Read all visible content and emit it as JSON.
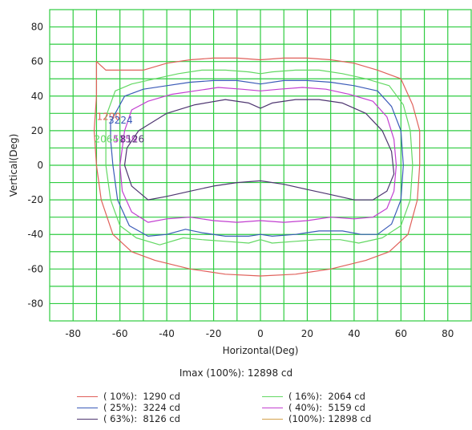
{
  "chart_data": {
    "type": "line",
    "title": "",
    "xlabel": "Horizontal(Deg)",
    "ylabel": "Vertical(Deg)",
    "xlim": [
      -90,
      90
    ],
    "ylim": [
      -90,
      90
    ],
    "x_ticks": [
      -80,
      -60,
      -40,
      -20,
      0,
      20,
      40,
      60,
      80
    ],
    "y_ticks": [
      80,
      60,
      40,
      20,
      0,
      -20,
      -40,
      -60,
      -80
    ],
    "grid": true,
    "grid_color": "#2ecc40",
    "legend_position": "bottom",
    "imax_text": "Imax (100%): 12898 cd",
    "series": [
      {
        "name": "( 10%):  1290 cd",
        "color": "#e0605a",
        "points": [
          [
            -70,
            60
          ],
          [
            -66,
            55
          ],
          [
            -60,
            55
          ],
          [
            -50,
            55
          ],
          [
            -40,
            59
          ],
          [
            -30,
            61
          ],
          [
            -20,
            62
          ],
          [
            -10,
            62
          ],
          [
            0,
            61
          ],
          [
            10,
            62
          ],
          [
            20,
            62
          ],
          [
            30,
            61
          ],
          [
            40,
            59
          ],
          [
            50,
            55
          ],
          [
            60,
            50
          ],
          [
            65,
            35
          ],
          [
            68,
            20
          ],
          [
            68,
            0
          ],
          [
            67,
            -20
          ],
          [
            63,
            -40
          ],
          [
            55,
            -50
          ],
          [
            45,
            -55
          ],
          [
            30,
            -60
          ],
          [
            15,
            -63
          ],
          [
            0,
            -64
          ],
          [
            -15,
            -63
          ],
          [
            -30,
            -60
          ],
          [
            -45,
            -55
          ],
          [
            -55,
            -50
          ],
          [
            -63,
            -40
          ],
          [
            -68,
            -20
          ],
          [
            -70,
            0
          ],
          [
            -71,
            20
          ],
          [
            -70,
            40
          ]
        ]
      },
      {
        "name": "( 16%):  2064 cd",
        "color": "#63d863",
        "points": [
          [
            -66,
            28
          ],
          [
            -62,
            43
          ],
          [
            -55,
            47
          ],
          [
            -45,
            50
          ],
          [
            -35,
            53
          ],
          [
            -25,
            55
          ],
          [
            -15,
            55
          ],
          [
            -5,
            54
          ],
          [
            0,
            53
          ],
          [
            5,
            54
          ],
          [
            15,
            55
          ],
          [
            25,
            55
          ],
          [
            35,
            53
          ],
          [
            45,
            50
          ],
          [
            55,
            46
          ],
          [
            61,
            35
          ],
          [
            64,
            20
          ],
          [
            65,
            0
          ],
          [
            64,
            -20
          ],
          [
            60,
            -35
          ],
          [
            52,
            -42
          ],
          [
            42,
            -45
          ],
          [
            34,
            -43
          ],
          [
            25,
            -43
          ],
          [
            15,
            -44
          ],
          [
            5,
            -45
          ],
          [
            0,
            -43
          ],
          [
            -5,
            -45
          ],
          [
            -15,
            -44
          ],
          [
            -25,
            -43
          ],
          [
            -33,
            -42
          ],
          [
            -43,
            -46
          ],
          [
            -53,
            -42
          ],
          [
            -60,
            -35
          ],
          [
            -64,
            -20
          ],
          [
            -66,
            0
          ],
          [
            -66,
            15
          ]
        ]
      },
      {
        "name": "( 25%):  3224 cd",
        "color": "#3b5bb8",
        "points": [
          [
            -64,
            25
          ],
          [
            -58,
            40
          ],
          [
            -50,
            44
          ],
          [
            -40,
            46
          ],
          [
            -30,
            48
          ],
          [
            -20,
            49
          ],
          [
            -10,
            49
          ],
          [
            0,
            47
          ],
          [
            10,
            49
          ],
          [
            20,
            49
          ],
          [
            30,
            48
          ],
          [
            40,
            46
          ],
          [
            50,
            43
          ],
          [
            56,
            34
          ],
          [
            60,
            20
          ],
          [
            61,
            0
          ],
          [
            60,
            -20
          ],
          [
            56,
            -34
          ],
          [
            50,
            -40
          ],
          [
            43,
            -40
          ],
          [
            35,
            -38
          ],
          [
            25,
            -38
          ],
          [
            15,
            -40
          ],
          [
            5,
            -41
          ],
          [
            0,
            -40
          ],
          [
            -5,
            -41
          ],
          [
            -15,
            -41
          ],
          [
            -25,
            -39
          ],
          [
            -32,
            -37
          ],
          [
            -40,
            -40
          ],
          [
            -48,
            -41
          ],
          [
            -56,
            -35
          ],
          [
            -61,
            -20
          ],
          [
            -63,
            0
          ],
          [
            -64,
            15
          ]
        ]
      },
      {
        "name": "( 40%):  5159 cd",
        "color": "#c23fd0",
        "points": [
          [
            -58,
            20
          ],
          [
            -55,
            32
          ],
          [
            -48,
            37
          ],
          [
            -38,
            41
          ],
          [
            -28,
            43
          ],
          [
            -18,
            45
          ],
          [
            -8,
            44
          ],
          [
            0,
            43
          ],
          [
            8,
            44
          ],
          [
            18,
            45
          ],
          [
            28,
            44
          ],
          [
            38,
            41
          ],
          [
            48,
            37
          ],
          [
            54,
            28
          ],
          [
            57,
            15
          ],
          [
            58,
            0
          ],
          [
            57,
            -15
          ],
          [
            54,
            -25
          ],
          [
            48,
            -30
          ],
          [
            40,
            -31
          ],
          [
            30,
            -30
          ],
          [
            20,
            -32
          ],
          [
            10,
            -33
          ],
          [
            0,
            -32
          ],
          [
            -10,
            -33
          ],
          [
            -20,
            -32
          ],
          [
            -30,
            -30
          ],
          [
            -40,
            -31
          ],
          [
            -48,
            -33
          ],
          [
            -55,
            -27
          ],
          [
            -59,
            -15
          ],
          [
            -60,
            0
          ],
          [
            -59,
            10
          ]
        ]
      },
      {
        "name": "( 63%):  8126 cd",
        "color": "#4e3670",
        "points": [
          [
            -57,
            10
          ],
          [
            -52,
            20
          ],
          [
            -40,
            30
          ],
          [
            -28,
            35
          ],
          [
            -15,
            38
          ],
          [
            -5,
            36
          ],
          [
            0,
            33
          ],
          [
            5,
            36
          ],
          [
            15,
            38
          ],
          [
            25,
            38
          ],
          [
            35,
            36
          ],
          [
            45,
            30
          ],
          [
            52,
            20
          ],
          [
            56,
            8
          ],
          [
            57,
            -5
          ],
          [
            54,
            -15
          ],
          [
            48,
            -20
          ],
          [
            40,
            -20
          ],
          [
            30,
            -17
          ],
          [
            20,
            -14
          ],
          [
            10,
            -11
          ],
          [
            0,
            -9
          ],
          [
            -10,
            -10
          ],
          [
            -20,
            -12
          ],
          [
            -30,
            -15
          ],
          [
            -40,
            -18
          ],
          [
            -48,
            -20
          ],
          [
            -55,
            -12
          ],
          [
            -58,
            0
          ]
        ]
      },
      {
        "name": "(100%): 12898 cd",
        "color": "#d4a24c",
        "points": []
      }
    ],
    "contour_labels": [
      {
        "text": "1290",
        "color": "#e0605a",
        "x": -70,
        "y": 28
      },
      {
        "text": "3224",
        "color": "#3b5bb8",
        "x": -65,
        "y": 26
      },
      {
        "text": "2064",
        "color": "#63d863",
        "x": -71,
        "y": 15
      },
      {
        "text": "5159",
        "color": "#c23fd0",
        "x": -63,
        "y": 15
      },
      {
        "text": "8126",
        "color": "#4e3670",
        "x": -60,
        "y": 15
      }
    ]
  }
}
